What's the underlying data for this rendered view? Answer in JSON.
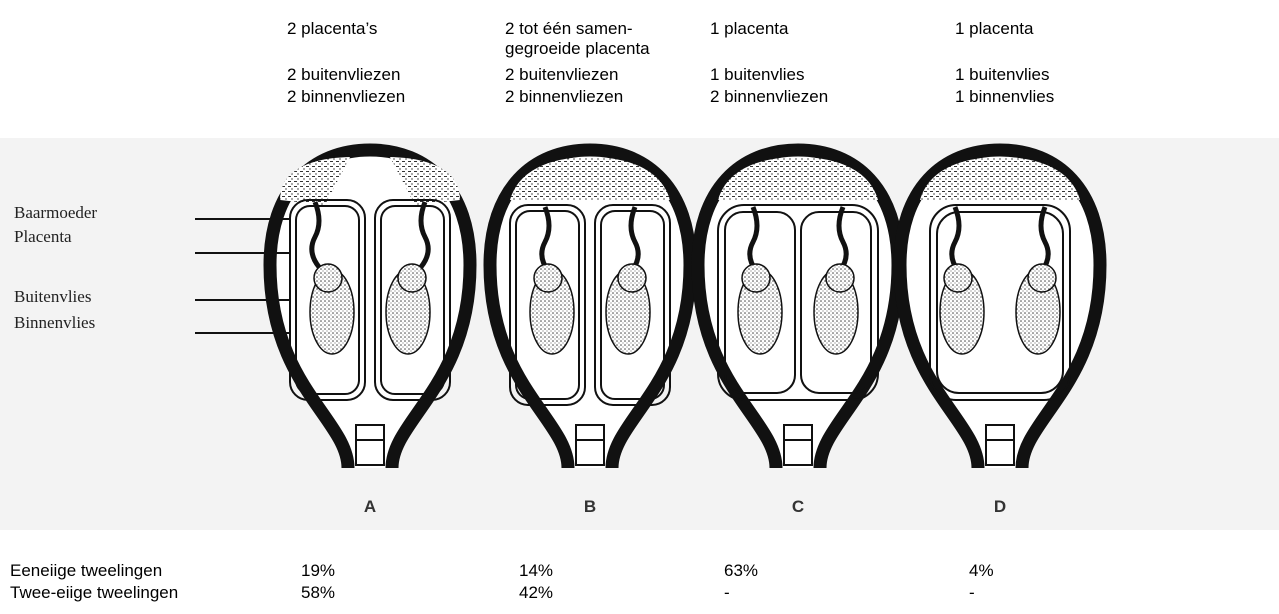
{
  "columns": [
    {
      "placenta": [
        "2 placenta’s"
      ],
      "buitenvlies": "2 buitenvliezen",
      "binnenvlies": "2 binnenvliezen",
      "letter": "A"
    },
    {
      "placenta": [
        "2 tot één samen-",
        "gegroeide placenta"
      ],
      "buitenvlies": "2 buitenvliezen",
      "binnenvlies": "2 binnenvliezen",
      "letter": "B"
    },
    {
      "placenta": [
        "1 placenta"
      ],
      "buitenvlies": "1 buitenvlies",
      "binnenvlies": "2 binnenvliezen",
      "letter": "C"
    },
    {
      "placenta": [
        "1 placenta"
      ],
      "buitenvlies": "1 buitenvlies",
      "binnenvlies": "1 binnenvlies",
      "letter": "D"
    }
  ],
  "labels": [
    "Baarmoeder",
    "Placenta",
    "Buitenvlies",
    "Binnenvlies"
  ],
  "rows": [
    {
      "label": "Eeneiige tweelingen",
      "values": [
        "19%",
        "14%",
        "63%",
        "4%"
      ]
    },
    {
      "label": "Twee-eiige tweelingen",
      "values": [
        "58%",
        "42%",
        "-",
        "-"
      ]
    }
  ]
}
